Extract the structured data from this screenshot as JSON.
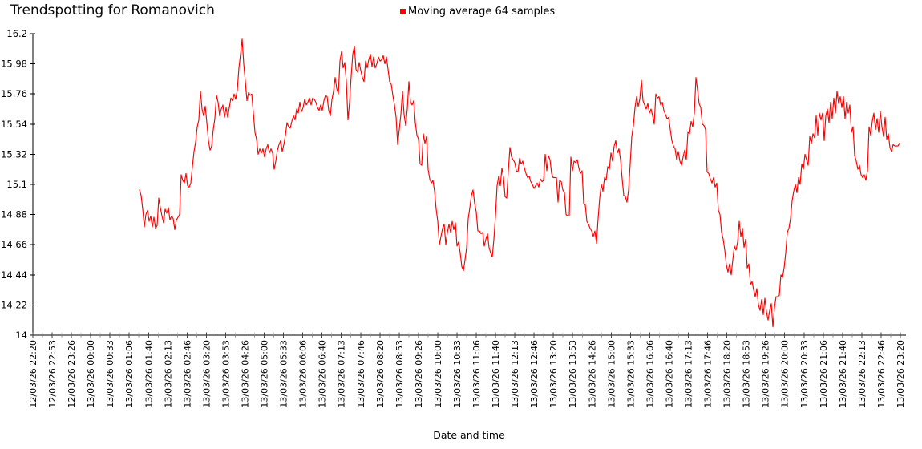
{
  "title": "Trendspotting for Romanovich",
  "legend": {
    "label": "Moving average 64 samples",
    "color": "#ff0000"
  },
  "chart_data": {
    "type": "line",
    "title": "Trendspotting for Romanovich",
    "series_name": "Moving average 64 samples",
    "line_color": "#ff0000",
    "xlabel": "Date and time",
    "ylabel": "",
    "grid": false,
    "legend_position": "top-center",
    "y_axis": {
      "min": 14,
      "max": 16.2,
      "tick_labels": [
        "16.2",
        "15.98",
        "15.76",
        "15.54",
        "15.32",
        "15.1",
        "14.88",
        "14.66",
        "14.44",
        "14.22",
        "14"
      ]
    },
    "x_axis": {
      "total_minutes": 1500,
      "minor_ticks_per_label": 1,
      "tick_labels": [
        "12/03/26 22:20",
        "12/03/26 22:53",
        "12/03/26 23:26",
        "13/03/26 00:00",
        "13/03/26 00:33",
        "13/03/26 01:06",
        "13/03/26 01:40",
        "13/03/26 02:13",
        "13/03/26 02:46",
        "13/03/26 03:20",
        "13/03/26 03:53",
        "13/03/26 04:26",
        "13/03/26 05:00",
        "13/03/26 05:33",
        "13/03/26 06:06",
        "13/03/26 06:40",
        "13/03/26 07:13",
        "13/03/26 07:46",
        "13/03/26 08:20",
        "13/03/26 08:53",
        "13/03/26 09:26",
        "13/03/26 10:00",
        "13/03/26 10:33",
        "13/03/26 11:06",
        "13/03/26 11:40",
        "13/03/26 12:13",
        "13/03/26 12:46",
        "13/03/26 13:20",
        "13/03/26 13:53",
        "13/03/26 14:26",
        "13/03/26 15:00",
        "13/03/26 15:33",
        "13/03/26 16:06",
        "13/03/26 16:40",
        "13/03/26 17:13",
        "13/03/26 17:46",
        "13/03/26 18:20",
        "13/03/26 18:53",
        "13/03/26 19:26",
        "13/03/26 20:00",
        "13/03/26 20:33",
        "13/03/26 21:06",
        "13/03/26 21:40",
        "13/03/26 22:13",
        "13/03/26 22:46",
        "13/03/26 23:20"
      ]
    },
    "series": {
      "name": "Moving average 64 samples",
      "start_minute": 184.4,
      "step_minute": 2.7726,
      "values": [
        15.06,
        15.02,
        14.92,
        14.79,
        14.88,
        14.91,
        14.83,
        14.87,
        14.79,
        14.86,
        14.78,
        14.8,
        15.0,
        14.93,
        14.87,
        14.82,
        14.92,
        14.89,
        14.93,
        14.84,
        14.87,
        14.85,
        14.77,
        14.84,
        14.86,
        14.88,
        15.17,
        15.13,
        15.11,
        15.18,
        15.09,
        15.08,
        15.11,
        15.23,
        15.34,
        15.41,
        15.52,
        15.57,
        15.78,
        15.65,
        15.6,
        15.67,
        15.55,
        15.42,
        15.35,
        15.38,
        15.5,
        15.58,
        15.75,
        15.7,
        15.6,
        15.65,
        15.68,
        15.59,
        15.66,
        15.59,
        15.66,
        15.73,
        15.71,
        15.76,
        15.72,
        15.79,
        15.95,
        16.05,
        16.16,
        15.98,
        15.85,
        15.71,
        15.77,
        15.75,
        15.76,
        15.62,
        15.48,
        15.43,
        15.32,
        15.36,
        15.33,
        15.36,
        15.3,
        15.36,
        15.39,
        15.33,
        15.36,
        15.33,
        15.21,
        15.27,
        15.35,
        15.39,
        15.42,
        15.34,
        15.39,
        15.46,
        15.55,
        15.52,
        15.51,
        15.56,
        15.6,
        15.57,
        15.65,
        15.62,
        15.7,
        15.63,
        15.66,
        15.72,
        15.68,
        15.7,
        15.73,
        15.68,
        15.73,
        15.72,
        15.7,
        15.66,
        15.64,
        15.68,
        15.64,
        15.71,
        15.75,
        15.74,
        15.64,
        15.6,
        15.72,
        15.78,
        15.88,
        15.8,
        15.76,
        16.0,
        16.07,
        15.95,
        15.99,
        15.85,
        15.57,
        15.7,
        15.89,
        16.05,
        16.11,
        15.94,
        15.92,
        15.99,
        15.93,
        15.88,
        15.85,
        16.0,
        15.95,
        16.01,
        16.05,
        15.96,
        16.03,
        15.95,
        15.98,
        16.03,
        16.0,
        16.01,
        16.04,
        15.98,
        16.03,
        15.94,
        15.85,
        15.83,
        15.75,
        15.68,
        15.59,
        15.39,
        15.5,
        15.61,
        15.78,
        15.61,
        15.53,
        15.65,
        15.85,
        15.7,
        15.68,
        15.71,
        15.55,
        15.46,
        15.43,
        15.25,
        15.24,
        15.47,
        15.4,
        15.45,
        15.21,
        15.14,
        15.11,
        15.13,
        15.05,
        14.92,
        14.83,
        14.66,
        14.72,
        14.78,
        14.81,
        14.66,
        14.75,
        14.81,
        14.75,
        14.83,
        14.77,
        14.82,
        14.65,
        14.68,
        14.6,
        14.5,
        14.47,
        14.55,
        14.64,
        14.85,
        14.93,
        15.02,
        15.06,
        14.96,
        14.9,
        14.76,
        14.76,
        14.74,
        14.75,
        14.65,
        14.7,
        14.74,
        14.64,
        14.6,
        14.57,
        14.7,
        14.87,
        15.09,
        15.16,
        15.09,
        15.22,
        15.15,
        15.01,
        15.0,
        15.2,
        15.37,
        15.3,
        15.28,
        15.26,
        15.2,
        15.19,
        15.29,
        15.25,
        15.27,
        15.22,
        15.18,
        15.15,
        15.16,
        15.12,
        15.1,
        15.07,
        15.09,
        15.11,
        15.08,
        15.14,
        15.12,
        15.13,
        15.32,
        15.2,
        15.31,
        15.28,
        15.18,
        15.15,
        15.15,
        15.15,
        14.97,
        15.13,
        15.12,
        15.06,
        15.04,
        14.88,
        14.87,
        14.87,
        15.3,
        15.2,
        15.27,
        15.26,
        15.28,
        15.22,
        15.18,
        15.2,
        14.96,
        14.95,
        14.83,
        14.81,
        14.78,
        14.76,
        14.72,
        14.76,
        14.67,
        14.85,
        15.0,
        15.1,
        15.05,
        15.15,
        15.13,
        15.23,
        15.21,
        15.33,
        15.27,
        15.38,
        15.42,
        15.33,
        15.36,
        15.28,
        15.14,
        15.02,
        15.01,
        14.97,
        15.06,
        15.25,
        15.45,
        15.53,
        15.66,
        15.74,
        15.67,
        15.72,
        15.86,
        15.71,
        15.68,
        15.65,
        15.69,
        15.62,
        15.65,
        15.6,
        15.54,
        15.76,
        15.73,
        15.74,
        15.68,
        15.7,
        15.64,
        15.61,
        15.58,
        15.59,
        15.5,
        15.42,
        15.38,
        15.36,
        15.28,
        15.34,
        15.27,
        15.24,
        15.3,
        15.35,
        15.28,
        15.48,
        15.47,
        15.56,
        15.52,
        15.62,
        15.88,
        15.79,
        15.69,
        15.66,
        15.54,
        15.53,
        15.5,
        15.19,
        15.18,
        15.14,
        15.11,
        15.15,
        15.08,
        15.11,
        14.91,
        14.88,
        14.75,
        14.7,
        14.62,
        14.51,
        14.46,
        14.52,
        14.44,
        14.55,
        14.65,
        14.62,
        14.68,
        14.83,
        14.72,
        14.78,
        14.64,
        14.7,
        14.49,
        14.52,
        14.37,
        14.39,
        14.33,
        14.28,
        14.34,
        14.22,
        14.18,
        14.26,
        14.15,
        14.27,
        14.17,
        14.11,
        14.18,
        14.23,
        14.06,
        14.2,
        14.28,
        14.28,
        14.29,
        14.44,
        14.42,
        14.49,
        14.6,
        14.75,
        14.78,
        14.85,
        14.98,
        15.05,
        15.1,
        15.04,
        15.15,
        15.1,
        15.25,
        15.21,
        15.32,
        15.28,
        15.24,
        15.45,
        15.4,
        15.47,
        15.44,
        15.6,
        15.46,
        15.62,
        15.57,
        15.62,
        15.42,
        15.6,
        15.65,
        15.55,
        15.7,
        15.58,
        15.73,
        15.62,
        15.78,
        15.69,
        15.74,
        15.66,
        15.74,
        15.58,
        15.7,
        15.62,
        15.68,
        15.48,
        15.52,
        15.31,
        15.27,
        15.21,
        15.24,
        15.17,
        15.15,
        15.17,
        15.13,
        15.2,
        15.52,
        15.46,
        15.56,
        15.62,
        15.5,
        15.58,
        15.48,
        15.63,
        15.52,
        15.45,
        15.59,
        15.43,
        15.47,
        15.37,
        15.34,
        15.39,
        15.38,
        15.38,
        15.38,
        15.4
      ]
    }
  }
}
